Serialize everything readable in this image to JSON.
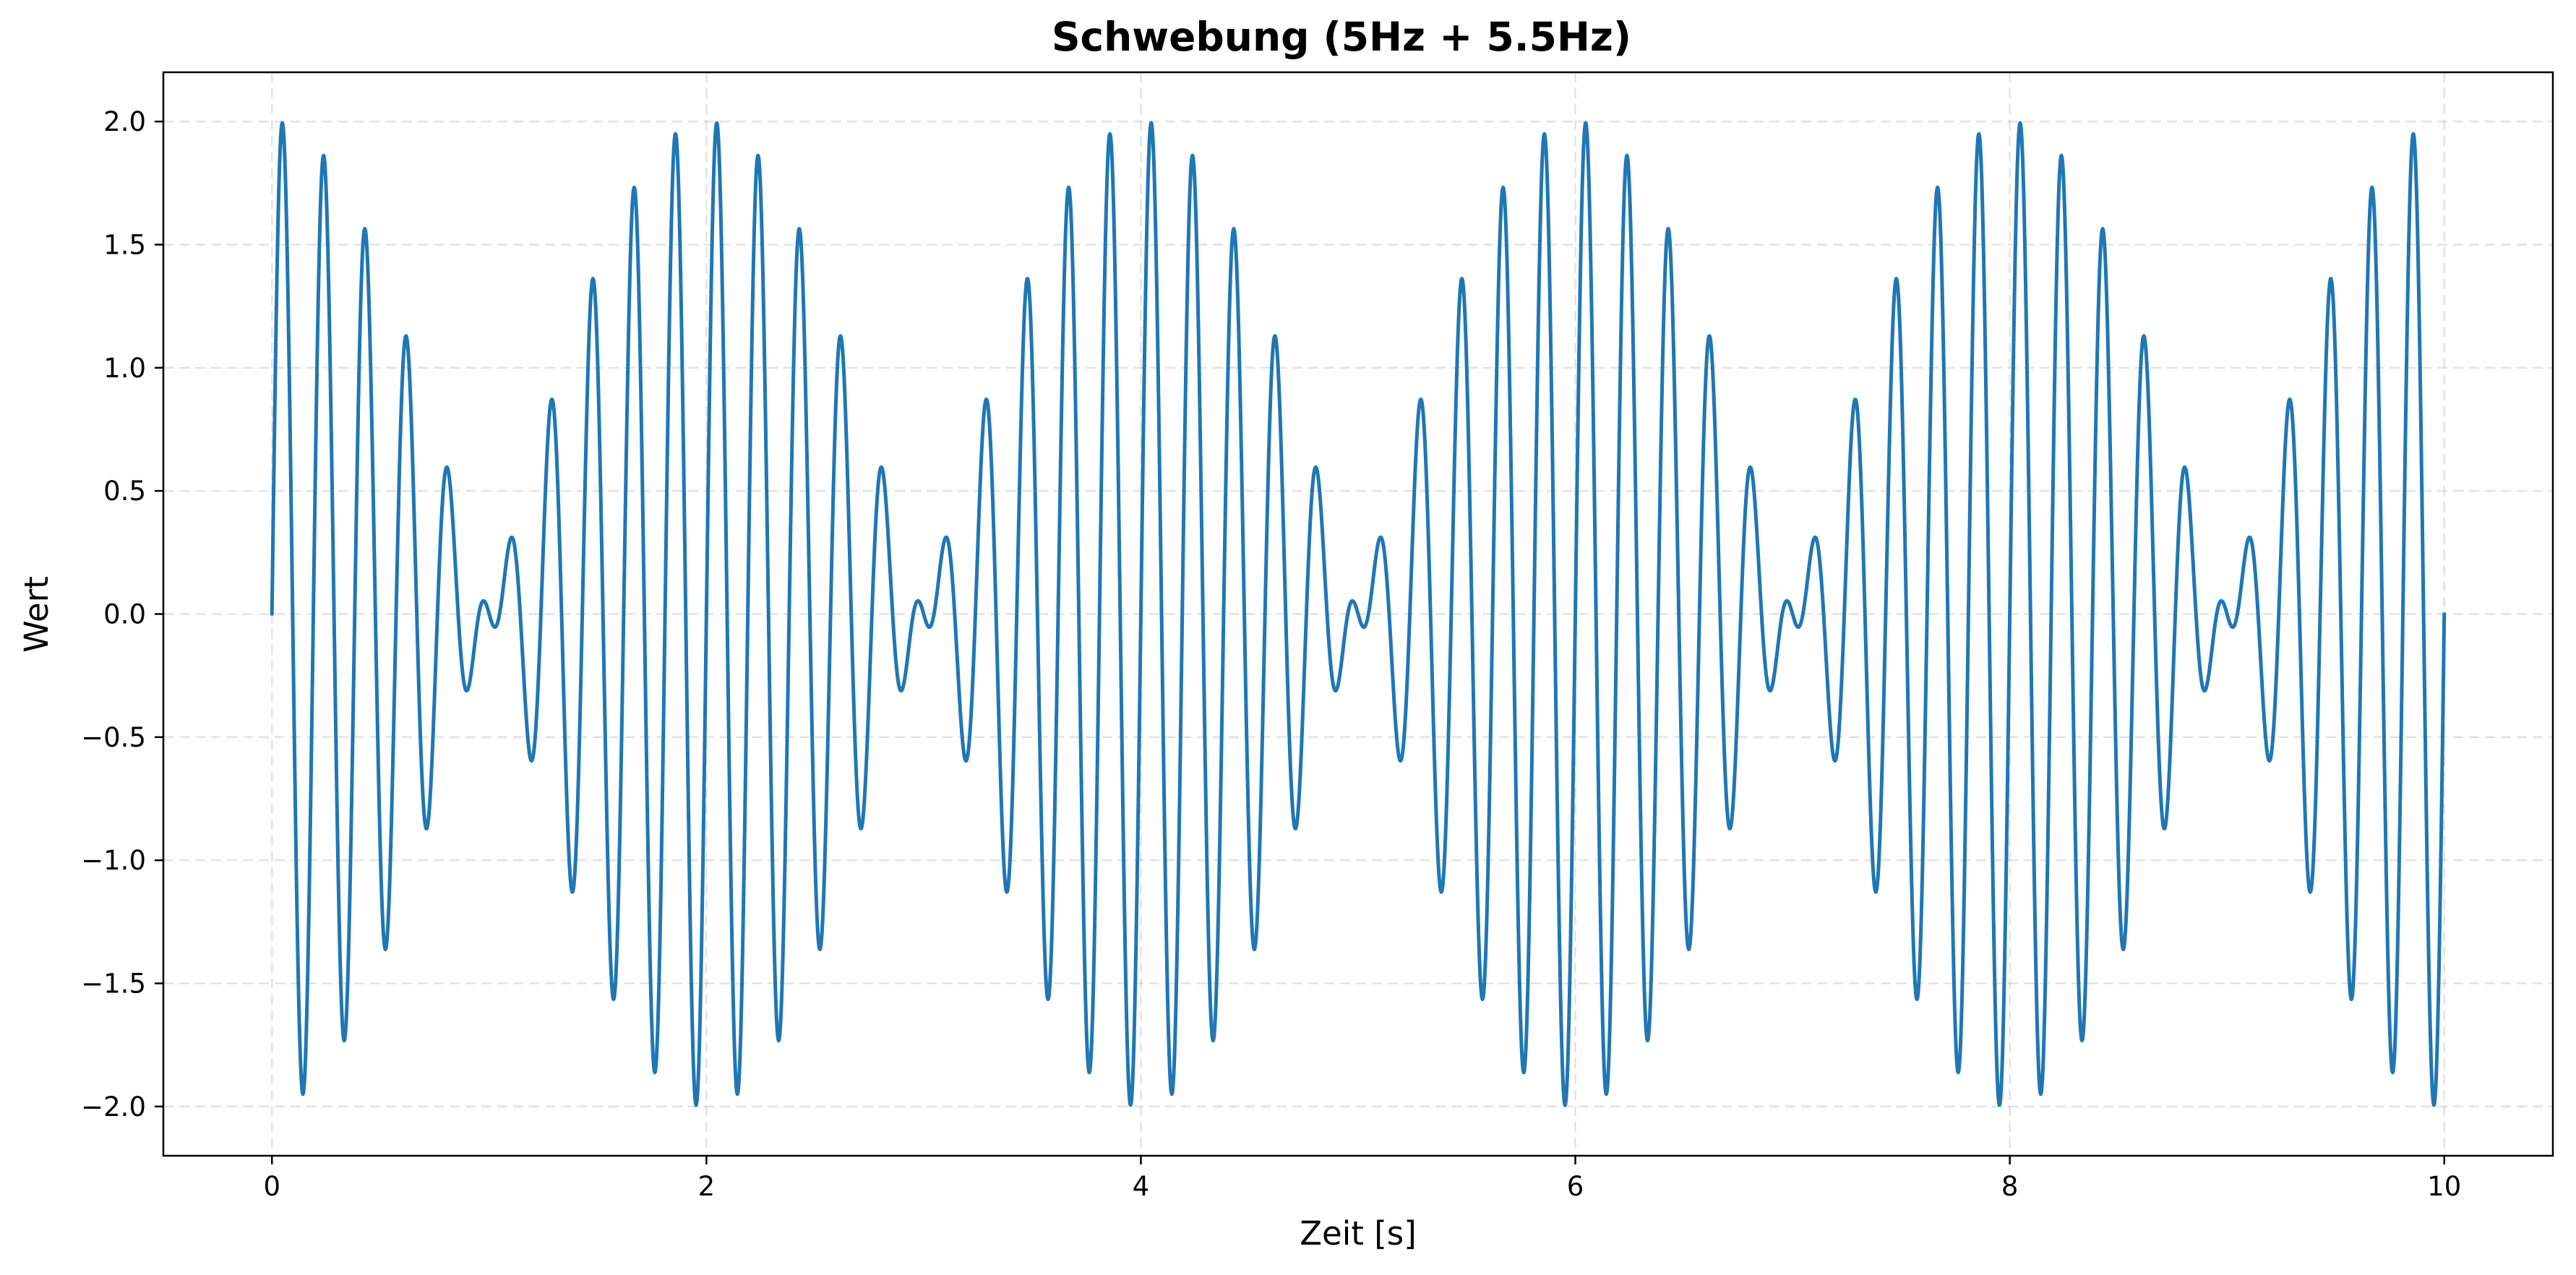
{
  "chart_data": {
    "type": "line",
    "title": "Schwebung (5Hz + 5.5Hz)",
    "xlabel": "Zeit [s]",
    "ylabel": "Wert",
    "xlim": [
      -0.5,
      10.5
    ],
    "ylim": [
      -2.2,
      2.2
    ],
    "x_ticks": [
      0,
      2,
      4,
      6,
      8,
      10
    ],
    "x_tick_labels": [
      "0",
      "2",
      "4",
      "6",
      "8",
      "10"
    ],
    "y_ticks": [
      -2.0,
      -1.5,
      -1.0,
      -0.5,
      0.0,
      0.5,
      1.0,
      1.5,
      2.0
    ],
    "y_tick_labels": [
      "−2.0",
      "−1.5",
      "−1.0",
      "−0.5",
      "0.0",
      "0.5",
      "1.0",
      "1.5",
      "2.0"
    ],
    "grid": true,
    "line_color": "#1f77b4",
    "series": [
      {
        "function": "sin(2π·5·t) + sin(2π·5.5·t)",
        "components_hz": [
          5,
          5.5
        ],
        "x_range": [
          0,
          10
        ],
        "samples": 4000
      }
    ]
  }
}
